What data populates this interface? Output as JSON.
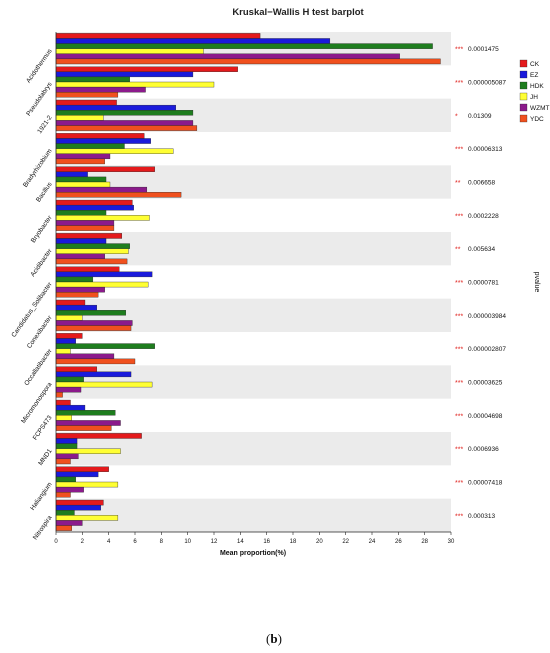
{
  "chart_data": {
    "type": "bar",
    "orientation": "horizontal",
    "title": "Kruskal−Wallis H test barplot",
    "xlabel": "Mean proportion(%)",
    "ylabel": "",
    "right_label": "pvalue",
    "xlim": [
      0,
      30
    ],
    "xticks": [
      "0",
      "2",
      "4",
      "6",
      "8",
      "10",
      "12",
      "14",
      "16",
      "18",
      "20",
      "22",
      "24",
      "26",
      "28",
      "30"
    ],
    "grid": false,
    "legend_position": "right",
    "categories": [
      "Acidothermus",
      "Pseudolabrys",
      "1921-2",
      "Bradyrhizobium",
      "Bacillus",
      "Bryobacter",
      "Acidibacter",
      "Candidatus_Solibacter",
      "Conexibacter",
      "Occallatibacter",
      "Micromonospora",
      "FCPS473",
      "MND1",
      "Haliangium",
      "Nitrospira"
    ],
    "significance": [
      "***",
      "***",
      "*",
      "***",
      "**",
      "***",
      "**",
      "***",
      "***",
      "***",
      "***",
      "***",
      "***",
      "***",
      "***"
    ],
    "pvalues": [
      "0.0001475",
      "0.000005087",
      "0.01309",
      "0.00006313",
      "0.006658",
      "0.0002228",
      "0.005634",
      "0.0000781",
      "0.000003984",
      "0.000002807",
      "0.00003625",
      "0.00004698",
      "0.0006936",
      "0.00007418",
      "0.000313"
    ],
    "series": [
      {
        "name": "CK",
        "color": "#e41a1c",
        "values": [
          15.5,
          13.8,
          4.6,
          6.7,
          7.5,
          5.8,
          5.0,
          4.8,
          2.2,
          2.0,
          3.1,
          1.1,
          6.5,
          4.0,
          3.6
        ]
      },
      {
        "name": "EZ",
        "color": "#1a1adb",
        "values": [
          20.8,
          10.4,
          9.1,
          7.2,
          2.4,
          5.9,
          3.8,
          7.3,
          3.1,
          1.5,
          5.7,
          2.2,
          1.6,
          3.2,
          3.4
        ]
      },
      {
        "name": "HDK",
        "color": "#1e7d1e",
        "values": [
          28.6,
          5.6,
          10.4,
          5.2,
          3.8,
          3.8,
          5.6,
          2.8,
          5.3,
          7.5,
          2.1,
          4.5,
          1.6,
          1.5,
          1.4
        ]
      },
      {
        "name": "JH",
        "color": "#ffff33",
        "values": [
          11.2,
          12.0,
          3.6,
          8.9,
          4.1,
          7.1,
          5.5,
          7.0,
          2.0,
          1.1,
          7.3,
          1.2,
          4.9,
          4.7,
          4.7
        ]
      },
      {
        "name": "WZMT",
        "color": "#8b1a8b",
        "values": [
          26.1,
          6.8,
          10.4,
          4.1,
          6.9,
          4.4,
          3.7,
          3.7,
          5.8,
          4.4,
          1.9,
          4.9,
          1.7,
          2.1,
          2.0
        ]
      },
      {
        "name": "YDC",
        "color": "#f0501e",
        "values": [
          29.2,
          4.7,
          10.7,
          3.7,
          9.5,
          4.4,
          5.4,
          3.2,
          5.7,
          6.0,
          0.5,
          4.2,
          1.1,
          1.1,
          1.2
        ]
      }
    ]
  },
  "caption": {
    "open": "(",
    "letter": "b",
    "close": ")"
  }
}
